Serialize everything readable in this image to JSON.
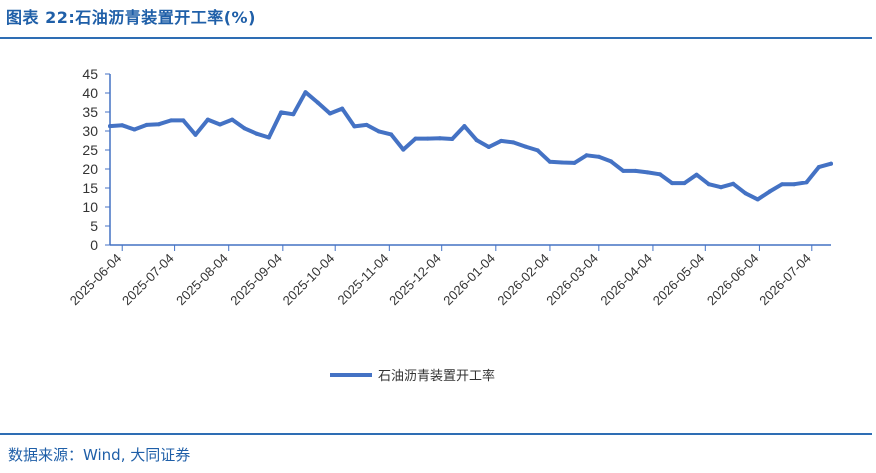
{
  "header": {
    "title": "图表 22:石油沥青装置开工率(%)"
  },
  "footer": {
    "source": "数据来源：Wind, 大同证券"
  },
  "colors": {
    "line": "#4472c4",
    "axis": "#4472c4",
    "brand": "#1f5fa8"
  },
  "chart_data": {
    "type": "line",
    "title": "",
    "xlabel": "",
    "ylabel": "",
    "ylim": [
      0,
      45
    ],
    "yticks": [
      0,
      5,
      10,
      15,
      20,
      25,
      30,
      35,
      40,
      45
    ],
    "xticks": [
      "2025-06-04",
      "2025-07-04",
      "2025-08-04",
      "2025-09-04",
      "2025-10-04",
      "2025-11-04",
      "2025-12-04",
      "2026-01-04",
      "2026-02-04",
      "2026-03-04",
      "2026-04-04",
      "2026-05-04",
      "2026-06-04",
      "2026-07-04"
    ],
    "grid": false,
    "legend_position": "bottom-center",
    "series": [
      {
        "name": "石油沥青装置开工率",
        "x": [
          "2025-05-28",
          "2025-06-04",
          "2025-06-11",
          "2025-06-18",
          "2025-06-25",
          "2025-07-02",
          "2025-07-09",
          "2025-07-16",
          "2025-07-23",
          "2025-07-30",
          "2025-08-06",
          "2025-08-13",
          "2025-08-20",
          "2025-08-27",
          "2025-09-03",
          "2025-09-10",
          "2025-09-17",
          "2025-09-24",
          "2025-10-01",
          "2025-10-08",
          "2025-10-15",
          "2025-10-22",
          "2025-10-29",
          "2025-11-05",
          "2025-11-12",
          "2025-11-19",
          "2025-11-26",
          "2025-12-03",
          "2025-12-10",
          "2025-12-17",
          "2025-12-24",
          "2025-12-31",
          "2026-01-07",
          "2026-01-14",
          "2026-01-21",
          "2026-01-28",
          "2026-02-04",
          "2026-02-11",
          "2026-02-18",
          "2026-02-25",
          "2026-03-04",
          "2026-03-11",
          "2026-03-18",
          "2026-03-25",
          "2026-04-01",
          "2026-04-08",
          "2026-04-15",
          "2026-04-22",
          "2026-04-29",
          "2026-05-06",
          "2026-05-13",
          "2026-05-20",
          "2026-05-27",
          "2026-06-03",
          "2026-06-10",
          "2026-06-17",
          "2026-06-24",
          "2026-07-01",
          "2026-07-08",
          "2026-07-15"
        ],
        "values": [
          31.3,
          31.5,
          30.4,
          31.6,
          31.8,
          32.8,
          32.8,
          29.0,
          33.0,
          31.7,
          33.0,
          30.7,
          29.3,
          28.3,
          34.9,
          34.4,
          40.2,
          37.5,
          34.6,
          35.9,
          31.2,
          31.6,
          29.9,
          29.1,
          25.1,
          28.0,
          28.0,
          28.1,
          27.9,
          31.3,
          27.6,
          25.8,
          27.4,
          27.0,
          25.9,
          24.9,
          21.9,
          21.7,
          21.6,
          23.6,
          23.2,
          22.0,
          19.5,
          19.5,
          19.1,
          18.6,
          16.3,
          16.3,
          18.5,
          16.0,
          15.2,
          16.1,
          13.6,
          12.0,
          14.1,
          16.0,
          16.0,
          16.5,
          20.5,
          21.4
        ]
      }
    ]
  }
}
